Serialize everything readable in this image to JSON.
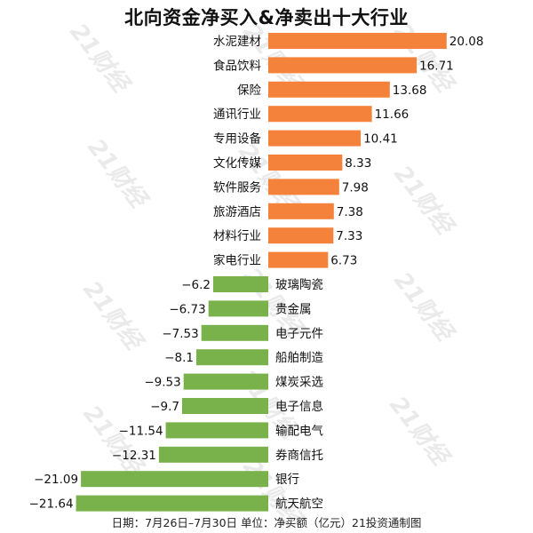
{
  "chart_data": {
    "type": "bar",
    "orientation": "horizontal",
    "title": "北向资金净买入&净卖出十大行业",
    "categories": [
      "水泥建材",
      "食品饮料",
      "保险",
      "通讯行业",
      "专用设备",
      "文化传媒",
      "软件服务",
      "旅游酒店",
      "材料行业",
      "家电行业",
      "玻璃陶瓷",
      "贵金属",
      "电子元件",
      "船舶制造",
      "煤炭采选",
      "电子信息",
      "输配电气",
      "券商信托",
      "银行",
      "航天航空"
    ],
    "values": [
      20.08,
      16.71,
      13.68,
      11.66,
      10.41,
      8.33,
      7.98,
      7.38,
      7.33,
      6.73,
      -6.2,
      -6.73,
      -7.53,
      -8.1,
      -9.53,
      -9.7,
      -11.54,
      -12.31,
      -21.09,
      -21.64
    ],
    "value_labels": [
      "20.08",
      "16.71",
      "13.68",
      "11.66",
      "10.41",
      "8.33",
      "7.98",
      "7.38",
      "7.33",
      "6.73",
      "−6.2",
      "−6.73",
      "−7.53",
      "−8.1",
      "−9.53",
      "−9.7",
      "−11.54",
      "−12.31",
      "−21.09",
      "−21.64"
    ],
    "colors": {
      "positive": "#f4823a",
      "negative": "#79b24a"
    },
    "xlim": [
      -21.64,
      20.08
    ],
    "grid": false,
    "legend": "none",
    "footer": "日期：7月26日–7月30日 单位：净买额（亿元）21投资通制图"
  },
  "watermark": {
    "text": "21财经"
  }
}
